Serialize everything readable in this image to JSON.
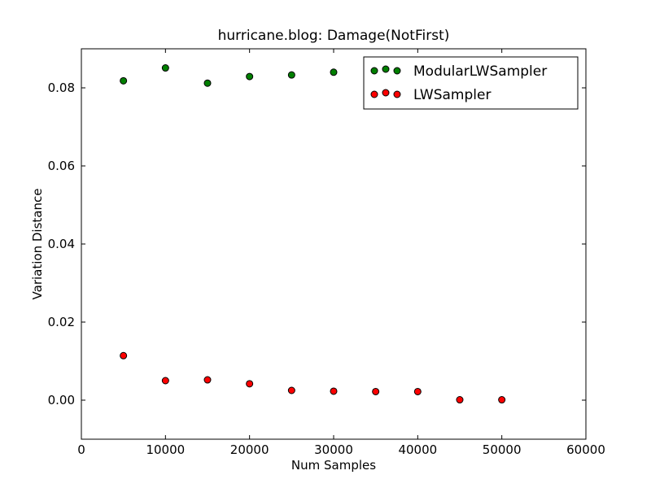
{
  "chart_data": {
    "type": "scatter",
    "title": "hurricane.blog: Damage(NotFirst)",
    "xlabel": "Num Samples",
    "ylabel": "Variation Distance",
    "xlim": [
      0,
      60000
    ],
    "ylim": [
      -0.01,
      0.09
    ],
    "xticks": [
      0,
      10000,
      20000,
      30000,
      40000,
      50000,
      60000
    ],
    "yticks": [
      0.0,
      0.02,
      0.04,
      0.06,
      0.08
    ],
    "xtick_labels": [
      "0",
      "10000",
      "20000",
      "30000",
      "40000",
      "50000",
      "60000"
    ],
    "ytick_labels": [
      "0.00",
      "0.02",
      "0.04",
      "0.06",
      "0.08"
    ],
    "grid": false,
    "legend_position": "top-right",
    "series": [
      {
        "name": "ModularLWSampler",
        "color": "#007f00",
        "x": [
          5000,
          10000,
          15000,
          20000,
          25000,
          30000
        ],
        "y": [
          0.0818,
          0.0851,
          0.0812,
          0.0829,
          0.0833,
          0.084
        ]
      },
      {
        "name": "LWSampler",
        "color": "#ff0000",
        "x": [
          5000,
          10000,
          15000,
          20000,
          25000,
          30000,
          35000,
          40000,
          45000,
          50000
        ],
        "y": [
          0.0114,
          0.005,
          0.0052,
          0.0042,
          0.0025,
          0.0023,
          0.0022,
          0.0022,
          0.0001,
          0.0001
        ]
      }
    ]
  }
}
